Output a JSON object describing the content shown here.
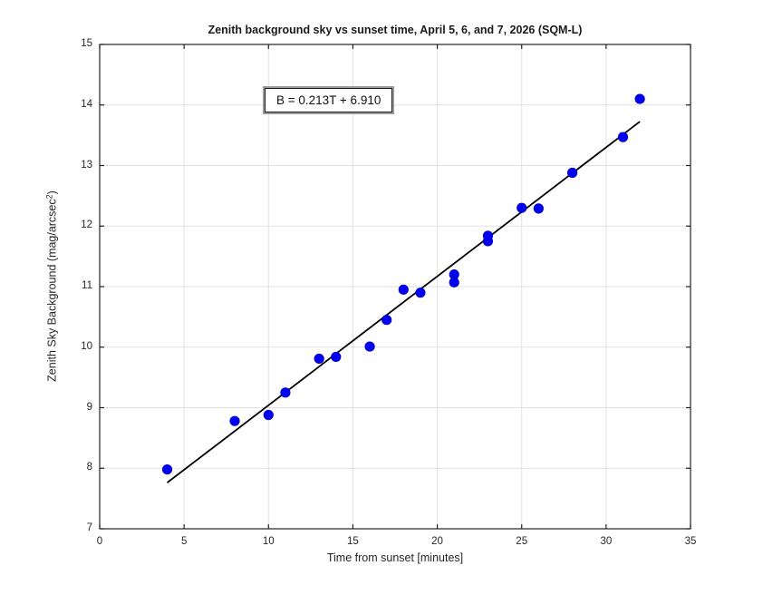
{
  "figure": {
    "title": "Zenith background sky vs sunset time, April 5, 6, and 7, 2026 (SQM-L)",
    "annotation": "B = 0.213T + 6.910",
    "xlabel": "Time from sunset [minutes]",
    "ylabel_prefix": "Zenith Sky Background (mag/arcsec",
    "ylabel_sup": "2",
    "ylabel_suffix": ")"
  },
  "colors": {
    "marker": "#0000f0",
    "marker_edge": "#0000c8",
    "fit_line": "#000000",
    "grid": "#e2e2e2",
    "axis": "#222222",
    "background": "#ffffff"
  },
  "chart_data": {
    "type": "scatter",
    "title": "Zenith background sky vs sunset time, April 5, 6, and 7, 2026 (SQM-L)",
    "xlabel": "Time from sunset [minutes]",
    "ylabel": "Zenith Sky Background (mag/arcsec^2)",
    "xlim": [
      0,
      35
    ],
    "ylim": [
      7,
      15
    ],
    "xticks": [
      0,
      5,
      10,
      15,
      20,
      25,
      30,
      35
    ],
    "yticks": [
      7,
      8,
      9,
      10,
      11,
      12,
      13,
      14,
      15
    ],
    "grid": true,
    "legend": "none",
    "points": [
      [
        4,
        7.98
      ],
      [
        8,
        8.78
      ],
      [
        10,
        8.88
      ],
      [
        11,
        9.25
      ],
      [
        13,
        9.81
      ],
      [
        14,
        9.84
      ],
      [
        16,
        10.01
      ],
      [
        17,
        10.45
      ],
      [
        18,
        10.95
      ],
      [
        19,
        10.9
      ],
      [
        21,
        11.07
      ],
      [
        21,
        11.2
      ],
      [
        23,
        11.75
      ],
      [
        23,
        11.84
      ],
      [
        25,
        12.3
      ],
      [
        26,
        12.29
      ],
      [
        28,
        12.88
      ],
      [
        31,
        13.47
      ],
      [
        32,
        14.1
      ]
    ],
    "fit": {
      "label": "B = 0.213T + 6.910",
      "slope": 0.213,
      "intercept": 6.91,
      "x_range": [
        4,
        32
      ]
    }
  }
}
